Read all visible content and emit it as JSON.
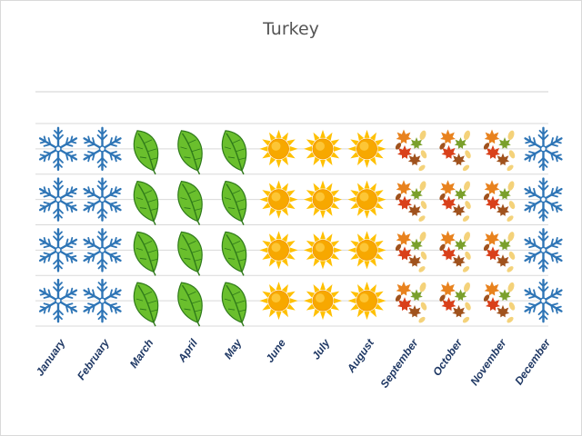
{
  "chart_data": {
    "type": "bar",
    "title": "Turkey",
    "xlabel": "",
    "ylabel": "",
    "categories": [
      "January",
      "February",
      "March",
      "April",
      "May",
      "June",
      "July",
      "August",
      "September",
      "October",
      "November",
      "December"
    ],
    "values": [
      4,
      4,
      4,
      4,
      4,
      4,
      4,
      4,
      4,
      4,
      4,
      4
    ],
    "season_icons": [
      "snowflake-icon",
      "snowflake-icon",
      "leaf-icon",
      "leaf-icon",
      "leaf-icon",
      "sun-icon",
      "sun-icon",
      "sun-icon",
      "autumn-leaves-icon",
      "autumn-leaves-icon",
      "autumn-leaves-icon",
      "snowflake-icon"
    ],
    "ylim": [
      0,
      4
    ],
    "grid": true,
    "colors": {
      "snow": "#2e75b6",
      "leaf": "#6abf2d",
      "leaf_dark": "#2f7a1a",
      "sun_core": "#f7a800",
      "sun_ray": "#ffc000",
      "autumn_red": "#d9401a",
      "autumn_orange": "#e8821e",
      "autumn_brown": "#a0521d",
      "autumn_green": "#7aa02c",
      "autumn_yellow": "#f4d27a",
      "axis_label": "#1f3864",
      "grid": "#d9d9d9"
    }
  }
}
